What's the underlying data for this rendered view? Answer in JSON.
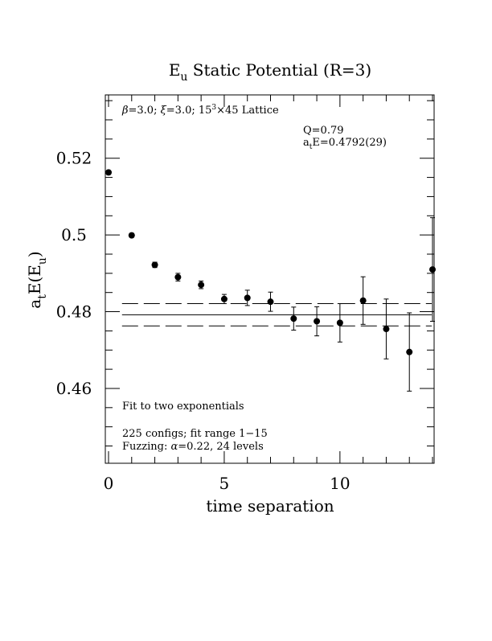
{
  "chart_data": {
    "type": "scatter",
    "title_main": "E",
    "title_sub": "u",
    "title_rest": " Static Potential (R=3)",
    "xlabel": "time separation",
    "ylabel_main": "a",
    "ylabel_sub1": "t",
    "ylabel_mid": "E(E",
    "ylabel_sub2": "u",
    "ylabel_end": ")",
    "xlim": [
      0,
      14
    ],
    "ylim": [
      0.4405,
      0.5365
    ],
    "x_ticks": [
      0,
      5,
      10
    ],
    "x_tick_labels": [
      "0",
      "5",
      "10"
    ],
    "y_ticks": [
      0.46,
      0.48,
      0.5,
      0.52
    ],
    "y_tick_labels": [
      "0.46",
      "0.48",
      "0.5",
      "0.52"
    ],
    "annotations": {
      "lattice_pre": "=3.0; ",
      "lattice_mid": "=3.0; 15",
      "lattice_sup": "3",
      "lattice_post": "×45 Lattice",
      "beta_symbol": "β",
      "xi_symbol": "ξ",
      "q_value": "Q=0.79",
      "energy_main": "a",
      "energy_sub": "t",
      "energy_rest": "E=0.4792(29)",
      "fit_desc": "Fit to two exponentials",
      "configs": "225 configs; fit range 1−15",
      "fuzz_pre": "Fuzzing: ",
      "fuzz_alpha": "α",
      "fuzz_post": "=0.22, 24 levels"
    },
    "fit": {
      "value": 0.4792,
      "error": 0.0029,
      "x_start": 1,
      "x_end": 14
    },
    "points": [
      {
        "x": 0,
        "y": 0.5163,
        "err": 0.0005
      },
      {
        "x": 1,
        "y": 0.4999,
        "err": 0.0005
      },
      {
        "x": 2,
        "y": 0.4922,
        "err": 0.0007
      },
      {
        "x": 3,
        "y": 0.489,
        "err": 0.001
      },
      {
        "x": 4,
        "y": 0.487,
        "err": 0.001
      },
      {
        "x": 5,
        "y": 0.4833,
        "err": 0.0012
      },
      {
        "x": 6,
        "y": 0.4836,
        "err": 0.002
      },
      {
        "x": 7,
        "y": 0.4826,
        "err": 0.0025
      },
      {
        "x": 8,
        "y": 0.4782,
        "err": 0.003
      },
      {
        "x": 9,
        "y": 0.4775,
        "err": 0.0038
      },
      {
        "x": 10,
        "y": 0.4771,
        "err": 0.005
      },
      {
        "x": 11,
        "y": 0.4829,
        "err": 0.0062
      },
      {
        "x": 12,
        "y": 0.4755,
        "err": 0.0078
      },
      {
        "x": 13,
        "y": 0.4695,
        "err": 0.0102
      },
      {
        "x": 14,
        "y": 0.491,
        "err": 0.0135
      }
    ],
    "grid": false,
    "legend": "none"
  }
}
